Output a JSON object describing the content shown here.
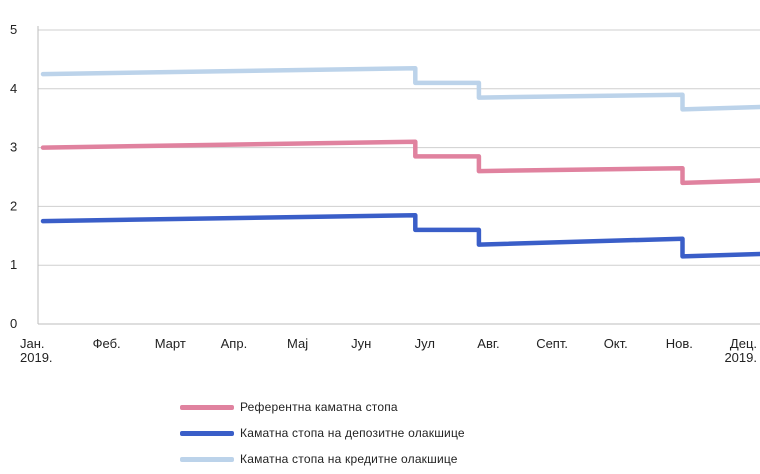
{
  "chart_data": {
    "type": "line",
    "step": true,
    "x_categories": [
      [
        "Јан.",
        "2019."
      ],
      [
        "Феб."
      ],
      [
        "Март"
      ],
      [
        "Апр."
      ],
      [
        "Мај"
      ],
      [
        "Јун"
      ],
      [
        "Јул"
      ],
      [
        "Авг."
      ],
      [
        "Септ."
      ],
      [
        "Окт."
      ],
      [
        "Нов."
      ],
      [
        "Дец.",
        "2019."
      ]
    ],
    "ylim": [
      0,
      5
    ],
    "yticks": [
      "0",
      "1",
      "2",
      "3",
      "4",
      "5"
    ],
    "grid": true,
    "legend_position": "bottom",
    "series": [
      {
        "name": "Референтна каматна стопа",
        "color": "#e0829f",
        "points": [
          [
            0,
            3.0
          ],
          [
            5.85,
            3.1
          ],
          [
            5.85,
            2.85
          ],
          [
            6.85,
            2.85
          ],
          [
            6.85,
            2.6
          ],
          [
            10.05,
            2.65
          ],
          [
            10.05,
            2.4
          ],
          [
            11.6,
            2.45
          ]
        ]
      },
      {
        "name": "Каматна стопа на депозитне олакшице",
        "color": "#3a5ec8",
        "points": [
          [
            0,
            1.75
          ],
          [
            5.85,
            1.85
          ],
          [
            5.85,
            1.6
          ],
          [
            6.85,
            1.6
          ],
          [
            6.85,
            1.35
          ],
          [
            10.05,
            1.45
          ],
          [
            10.05,
            1.15
          ],
          [
            11.6,
            1.2
          ]
        ]
      },
      {
        "name": "Каматна стопа на кредитне олакшице",
        "color": "#bcd3ea",
        "points": [
          [
            0,
            4.25
          ],
          [
            5.85,
            4.35
          ],
          [
            5.85,
            4.1
          ],
          [
            6.85,
            4.1
          ],
          [
            6.85,
            3.85
          ],
          [
            10.05,
            3.9
          ],
          [
            10.05,
            3.65
          ],
          [
            11.6,
            3.7
          ]
        ]
      }
    ]
  }
}
